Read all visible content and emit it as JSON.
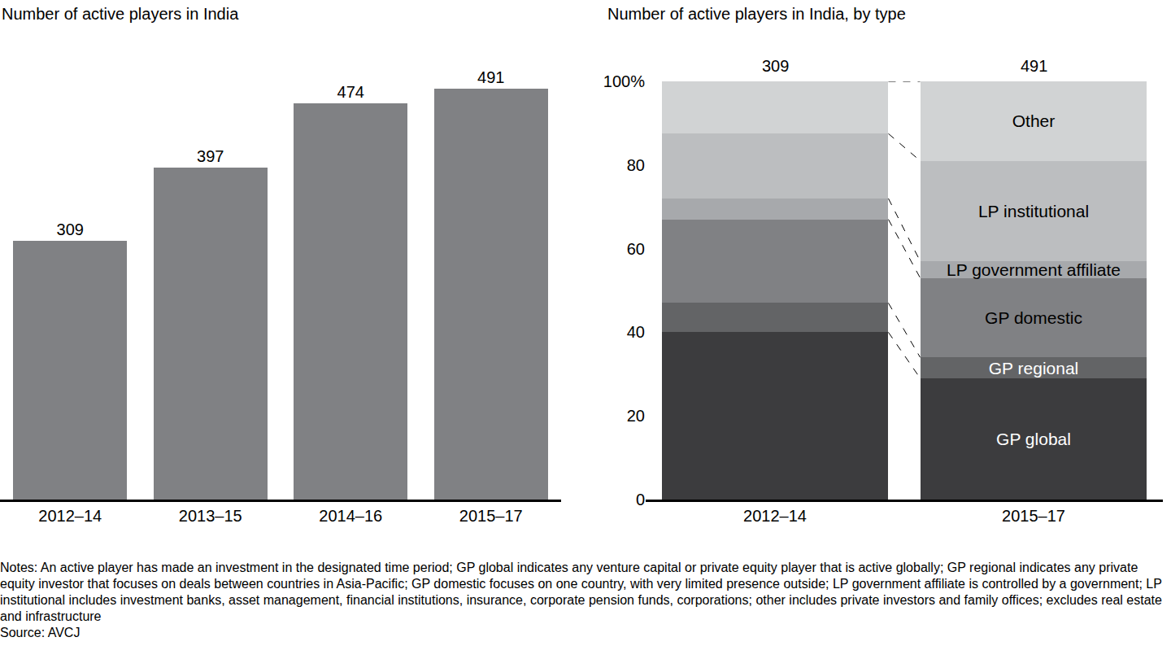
{
  "chart_data": [
    {
      "type": "bar",
      "title": "Number of active players in India",
      "categories": [
        "2012–14",
        "2013–15",
        "2014–16",
        "2015–17"
      ],
      "values": [
        309,
        397,
        474,
        491
      ],
      "color": "#808184",
      "ylim": [
        0,
        500
      ],
      "data_labels": true,
      "tick_labels": "x",
      "grid": false
    },
    {
      "type": "bar",
      "title": "Number of active players in India, by type",
      "stacked": true,
      "categories": [
        "2012–14",
        "2015–17"
      ],
      "totals": [
        309,
        491
      ],
      "series": [
        {
          "name": "GP global",
          "color": "#3c3c3e",
          "values": [
            40,
            29
          ]
        },
        {
          "name": "GP regional",
          "color": "#636466",
          "values": [
            7,
            5
          ]
        },
        {
          "name": "GP domestic",
          "color": "#808184",
          "values": [
            20,
            19
          ]
        },
        {
          "name": "LP government affiliate",
          "color": "#a7a9ac",
          "values": [
            5,
            4
          ]
        },
        {
          "name": "LP institutional",
          "color": "#bcbec0",
          "values": [
            15.5,
            24
          ]
        },
        {
          "name": "Other",
          "color": "#d1d3d4",
          "values": [
            12.5,
            19
          ]
        }
      ],
      "ylim": [
        0,
        100
      ],
      "yticks": [
        0,
        20,
        40,
        60,
        80,
        {
          "value": 100,
          "label": "100%"
        }
      ],
      "grid": false
    }
  ],
  "notes": "Notes: An active player has made an investment in the designated time period; GP global indicates any venture capital or private equity player that is active globally; GP regional indicates any private equity investor that focuses on deals between countries in Asia-Pacific; GP domestic focuses on one country, with very limited presence outside; LP government affiliate is controlled by a government; LP institutional includes investment banks, asset management, financial institutions, insurance, corporate pension funds, corporations; other includes private investors and family offices; excludes real estate and infrastructure",
  "source": "Source: AVCJ"
}
